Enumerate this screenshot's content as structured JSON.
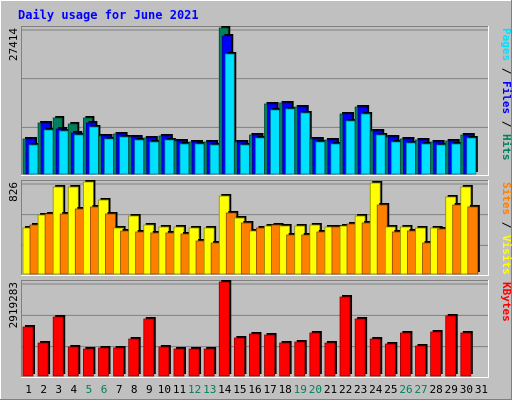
{
  "colors": {
    "hits": "#00805c",
    "files": "#0000ff",
    "pages": "#00e0ff",
    "visits": "#ffff00",
    "sites": "#ff8000",
    "kbytes": "#ff0000",
    "title": "#0000ff",
    "weekend": "#00805c",
    "weekday": "#000000",
    "plot_bg": "#c0c0c0",
    "frame_bg": "#c0c0c0"
  },
  "chart_data": {
    "type": "bar",
    "title": "Daily usage for June 2021",
    "categories": [
      "1",
      "2",
      "3",
      "4",
      "5",
      "6",
      "7",
      "8",
      "9",
      "10",
      "11",
      "12",
      "13",
      "14",
      "15",
      "16",
      "17",
      "18",
      "19",
      "20",
      "21",
      "22",
      "23",
      "24",
      "25",
      "26",
      "27",
      "28",
      "29",
      "30",
      "31"
    ],
    "weekend_days": [
      "5",
      "6",
      "12",
      "13",
      "19",
      "20",
      "26",
      "27"
    ],
    "panels": [
      {
        "id": "requests",
        "ymax_label": "27414",
        "ylim": [
          0,
          27414
        ],
        "legend": [
          "Pages",
          "Files",
          "Hits"
        ],
        "series": [
          {
            "name": "Hits",
            "values": [
              6500,
              9600,
              10600,
              9300,
              10600,
              7100,
              7600,
              6900,
              6700,
              7200,
              6200,
              6100,
              6000,
              27414,
              6100,
              7400,
              13200,
              13300,
              12500,
              6600,
              6300,
              11300,
              12500,
              8100,
              6900,
              6500,
              6400,
              6100,
              6200,
              7300,
              0
            ]
          },
          {
            "name": "Files",
            "values": [
              6500,
              9600,
              8500,
              7700,
              9500,
              7100,
              7600,
              6900,
              6700,
              7200,
              6200,
              6100,
              6000,
              25900,
              6100,
              7400,
              13200,
              13300,
              12500,
              6600,
              6300,
              11300,
              12500,
              8100,
              6900,
              6500,
              6400,
              6100,
              6200,
              7300,
              0
            ]
          },
          {
            "name": "Pages",
            "values": [
              5500,
              8300,
              8000,
              7300,
              8800,
              6500,
              7000,
              6300,
              6000,
              6400,
              5700,
              5600,
              5400,
              22600,
              5500,
              6800,
              12000,
              12200,
              11400,
              6000,
              5700,
              9900,
              11300,
              7300,
              6000,
              5900,
              5700,
              5500,
              5600,
              6700,
              0
            ]
          }
        ]
      },
      {
        "id": "visitors",
        "ymax_label": "826",
        "ylim": [
          0,
          826
        ],
        "legend": [
          "Sites",
          "Visits"
        ],
        "series": [
          {
            "name": "Visits",
            "values": [
              410,
              530,
              780,
              780,
              826,
              660,
              410,
              520,
              440,
              420,
              420,
              410,
              410,
              700,
              500,
              390,
              430,
              430,
              430,
              440,
              420,
              430,
              520,
              820,
              420,
              420,
              410,
              410,
              690,
              780,
              0
            ]
          },
          {
            "name": "Sites",
            "values": [
              440,
              540,
              540,
              580,
              600,
              540,
              390,
              380,
              370,
              370,
              360,
              300,
              280,
              550,
              460,
              410,
              440,
              350,
              350,
              380,
              420,
              450,
              460,
              620,
              380,
              390,
              280,
              400,
              620,
              600,
              0
            ]
          }
        ]
      },
      {
        "id": "kbytes",
        "ymax_label": "2919283",
        "ylim": [
          0,
          2919283
        ],
        "legend": [
          "KBytes"
        ],
        "series": [
          {
            "name": "KBytes",
            "values": [
              1520000,
              1010000,
              1830000,
              900000,
              830000,
              870000,
              870000,
              1150000,
              1780000,
              910000,
              830000,
              850000,
              840000,
              2919283,
              1180000,
              1290000,
              1260000,
              1020000,
              1070000,
              1340000,
              1010000,
              2450000,
              1780000,
              1150000,
              990000,
              1320000,
              930000,
              1360000,
              1870000,
              1340000,
              0
            ]
          }
        ]
      }
    ]
  }
}
